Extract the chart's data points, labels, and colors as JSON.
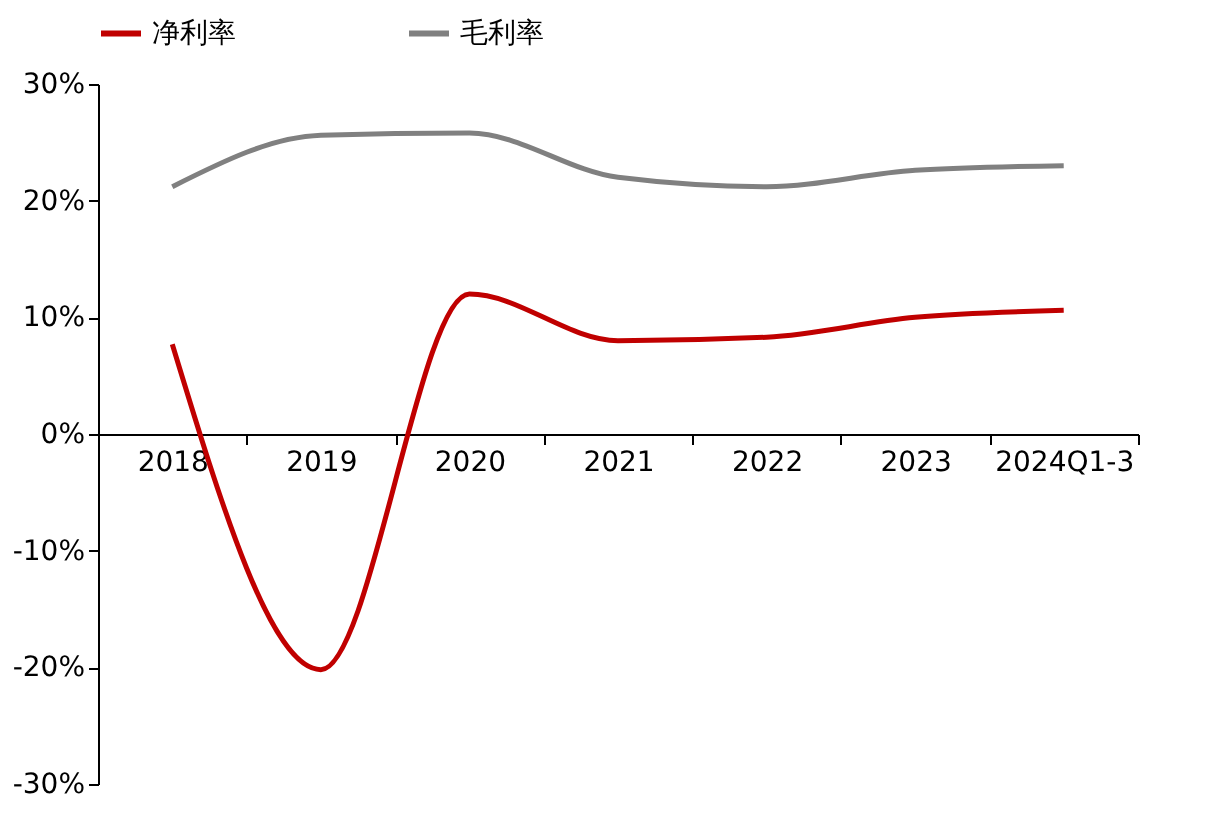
{
  "chart_data": {
    "type": "line",
    "categories": [
      "2018",
      "2019",
      "2020",
      "2021",
      "2022",
      "2023",
      "2024Q1-3"
    ],
    "series": [
      {
        "name": "净利率",
        "color": "#c00000",
        "values": [
          7.7,
          -20.2,
          12.0,
          8.0,
          8.3,
          10.0,
          10.6
        ]
      },
      {
        "name": "毛利率",
        "color": "#808080",
        "values": [
          21.2,
          25.6,
          25.8,
          22.0,
          21.2,
          22.6,
          23.0
        ]
      }
    ],
    "ylim": [
      -30,
      30
    ],
    "yticks": [
      {
        "value": -30,
        "label": "-30%"
      },
      {
        "value": -20,
        "label": "-20%"
      },
      {
        "value": -10,
        "label": "-10%"
      },
      {
        "value": 0,
        "label": "0%"
      },
      {
        "value": 10,
        "label": "10%"
      },
      {
        "value": 20,
        "label": "20%"
      },
      {
        "value": 30,
        "label": "30%"
      }
    ],
    "grid": false,
    "legend": "top",
    "marker": "none",
    "line_style": "solid"
  }
}
